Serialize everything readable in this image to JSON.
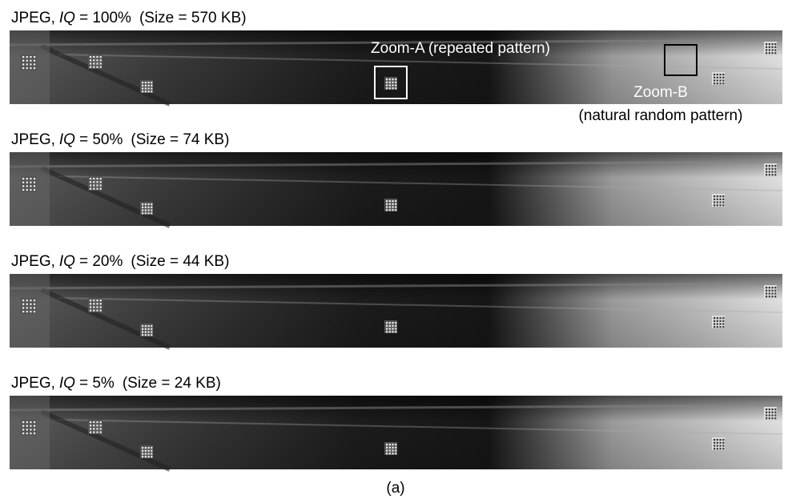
{
  "panels": [
    {
      "format": "JPEG,",
      "quality_symbol": "IQ",
      "quality": "= 100%",
      "size": "(Size = 570 KB)"
    },
    {
      "format": "JPEG,",
      "quality_symbol": "IQ",
      "quality": "= 50%",
      "size": "(Size = 74 KB)"
    },
    {
      "format": "JPEG,",
      "quality_symbol": "IQ",
      "quality": "= 20%",
      "size": "(Size = 44 KB)"
    },
    {
      "format": "JPEG,",
      "quality_symbol": "IQ",
      "quality": "= 5%",
      "size": "(Size = 24 KB)"
    }
  ],
  "annotations": {
    "zoom_a": "Zoom-A (repeated pattern)",
    "zoom_b": "Zoom-B",
    "zoom_b_note": "(natural random pattern)"
  },
  "caption": "(a)"
}
